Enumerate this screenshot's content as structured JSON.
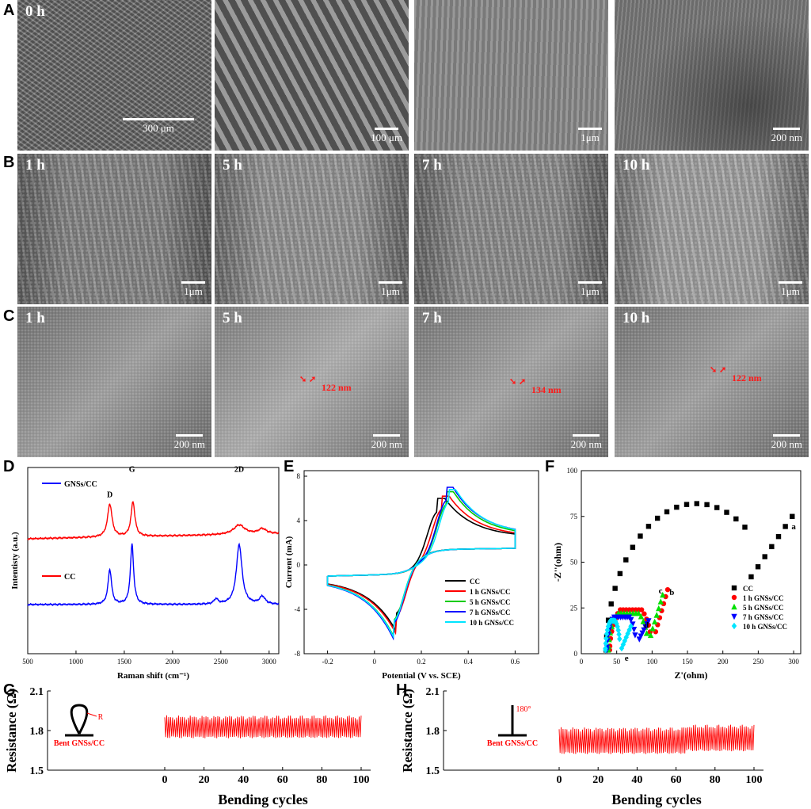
{
  "panels": {
    "A": "A",
    "B": "B",
    "C": "C",
    "D": "D",
    "E": "E",
    "F": "F",
    "G": "G",
    "H": "H"
  },
  "sem": {
    "A": [
      {
        "label": "0 h",
        "scale": "300 μm",
        "tone": "#6a6a6a"
      },
      {
        "label": "",
        "scale": "100 μm",
        "tone": "#7a7a7a"
      },
      {
        "label": "",
        "scale": "1μm",
        "tone": "#8a8a8a"
      },
      {
        "label": "",
        "scale": "200 nm",
        "tone": "#777777"
      }
    ],
    "B": [
      {
        "label": "1 h",
        "scale": "1μm",
        "tone": "#858585"
      },
      {
        "label": "5 h",
        "scale": "1μm",
        "tone": "#959595"
      },
      {
        "label": "7 h",
        "scale": "1μm",
        "tone": "#8d8d8d"
      },
      {
        "label": "10 h",
        "scale": "1μm",
        "tone": "#a3a3a3"
      }
    ],
    "C": [
      {
        "label": "1 h",
        "scale": "200 nm",
        "tone": "#8a8a8a",
        "measure": ""
      },
      {
        "label": "5 h",
        "scale": "200 nm",
        "tone": "#9a9a9a",
        "measure": "122 nm"
      },
      {
        "label": "7 h",
        "scale": "200 nm",
        "tone": "#8f8f8f",
        "measure": "134 nm"
      },
      {
        "label": "10 h",
        "scale": "200 nm",
        "tone": "#8c8c8c",
        "measure": "122 nm"
      }
    ]
  },
  "chart_data": [
    {
      "panel": "D",
      "type": "line",
      "xlabel": "Raman shift (cm⁻¹)",
      "ylabel": "Intentisty (a.u.)",
      "xlim": [
        500,
        3100
      ],
      "xticks": [
        500,
        1000,
        1500,
        2000,
        2500,
        3000
      ],
      "series": [
        {
          "name": "GNSs/CC",
          "color": "#0000ff",
          "offset": 1.0,
          "peaks": [
            {
              "x": 1350,
              "h": 0.55,
              "w": 22
            },
            {
              "x": 1580,
              "h": 0.95,
              "w": 20
            },
            {
              "x": 2450,
              "h": 0.08,
              "w": 25
            },
            {
              "x": 2690,
              "h": 0.95,
              "w": 35
            },
            {
              "x": 2930,
              "h": 0.12,
              "w": 35
            }
          ]
        },
        {
          "name": "CC",
          "color": "#ff0000",
          "offset": 0.0,
          "peaks": [
            {
              "x": 1350,
              "h": 0.52,
              "w": 28
            },
            {
              "x": 1590,
              "h": 0.55,
              "w": 24
            },
            {
              "x": 2690,
              "h": 0.15,
              "w": 70
            },
            {
              "x": 2930,
              "h": 0.08,
              "w": 50
            }
          ]
        }
      ],
      "annotations": [
        {
          "text": "D",
          "x": 1350
        },
        {
          "text": "G",
          "x": 1580
        },
        {
          "text": "2D",
          "x": 2690
        }
      ]
    },
    {
      "panel": "E",
      "type": "line",
      "xlabel": "Potential (V vs. SCE)",
      "ylabel": "Current (mA)",
      "xlim": [
        -0.3,
        0.7
      ],
      "ylim": [
        -8,
        8.5
      ],
      "xticks": [
        -0.2,
        0,
        0.2,
        0.4,
        0.6
      ],
      "yticks": [
        -8,
        -4,
        0,
        4,
        8
      ],
      "series": [
        {
          "name": "CC",
          "color": "#000000",
          "peak_ox": [
            0.27,
            6.0
          ],
          "peak_red": [
            0.09,
            -6.1
          ]
        },
        {
          "name": "1 h GNSs/CC",
          "color": "#ff0000",
          "peak_ox": [
            0.29,
            6.2
          ],
          "peak_red": [
            0.09,
            -6.4
          ]
        },
        {
          "name": "5 h GNSs/CC",
          "color": "#00cc00",
          "peak_ox": [
            0.31,
            6.6
          ],
          "peak_red": [
            0.08,
            -6.7
          ]
        },
        {
          "name": "7 h GNSs/CC",
          "color": "#0000ff",
          "peak_ox": [
            0.31,
            7.0
          ],
          "peak_red": [
            0.08,
            -7.0
          ]
        },
        {
          "name": "10 h GNSs/CC",
          "color": "#00e5ff",
          "peak_ox": [
            0.32,
            6.8
          ],
          "peak_red": [
            0.08,
            -6.8
          ]
        }
      ]
    },
    {
      "panel": "F",
      "type": "scatter",
      "xlabel": "Z'(ohm)",
      "ylabel": "-Z''(ohm)",
      "xlim": [
        0,
        310
      ],
      "ylim": [
        0,
        100
      ],
      "xticks": [
        0,
        50,
        100,
        150,
        200,
        250,
        300
      ],
      "yticks": [
        0,
        25,
        50,
        75,
        100
      ],
      "series": [
        {
          "name": "CC",
          "tag": "a",
          "color": "#000000",
          "marker": "square",
          "semi": [
            35,
            290
          ],
          "valley": [
            240,
            42
          ],
          "tail_end": [
            298,
            75
          ]
        },
        {
          "name": "1 h GNSs/CC",
          "tag": "b",
          "color": "#ff0000",
          "marker": "circle",
          "semi": [
            40,
            100
          ],
          "valley": [
            105,
            12
          ],
          "tail_end": [
            122,
            35
          ]
        },
        {
          "name": "5 h GNSs/CC",
          "tag": "c",
          "color": "#00e000",
          "marker": "triangle",
          "semi": [
            38,
            95
          ],
          "valley": [
            98,
            10
          ],
          "tail_end": [
            115,
            32
          ]
        },
        {
          "name": "7 h GNSs/CC",
          "tag": "d",
          "color": "#0000ff",
          "marker": "triangle-down",
          "semi": [
            36,
            78
          ],
          "valley": [
            82,
            8
          ],
          "tail_end": [
            95,
            18
          ]
        },
        {
          "name": "10 h GNSs/CC",
          "tag": "e",
          "color": "#00e5ff",
          "marker": "diamond",
          "semi": [
            34,
            55
          ],
          "valley": [
            57,
            3
          ],
          "tail_end": [
            70,
            15
          ]
        }
      ]
    },
    {
      "panel": "G",
      "type": "line",
      "xlabel": "Bending cycles",
      "ylabel": "Resistance (Ω)",
      "xlim": [
        0,
        100
      ],
      "ylim": [
        1.5,
        2.1
      ],
      "xticks": [
        0,
        20,
        40,
        60,
        80,
        100
      ],
      "yticks": [
        1.5,
        1.8,
        2.1
      ],
      "series": [
        {
          "name": "",
          "color": "#ff0000",
          "low": 1.75,
          "high": 1.9,
          "cycles": 100
        }
      ],
      "inset": {
        "text": "Bent GNSs/CC",
        "radius_label": "R"
      }
    },
    {
      "panel": "H",
      "type": "line",
      "xlabel": "Bending cycles",
      "ylabel": "Resistance (Ω)",
      "xlim": [
        0,
        100
      ],
      "ylim": [
        1.5,
        2.1
      ],
      "xticks": [
        0,
        20,
        40,
        60,
        80,
        100
      ],
      "yticks": [
        1.5,
        1.8,
        2.1
      ],
      "series": [
        {
          "name": "",
          "color": "#ff0000",
          "low": 1.63,
          "high": 1.81,
          "cycles": 100,
          "step_at": 65,
          "low2": 1.65,
          "high2": 1.83
        }
      ],
      "inset": {
        "text": "Bent GNSs/CC",
        "angle_label": "180°"
      }
    }
  ]
}
